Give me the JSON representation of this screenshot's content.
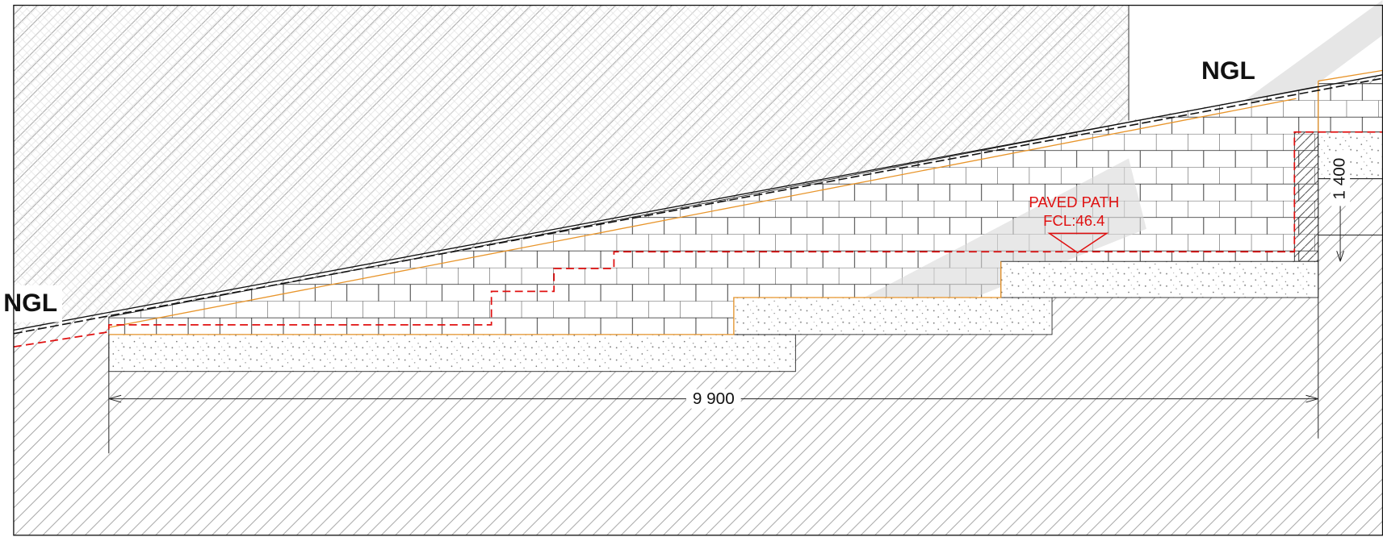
{
  "labels": {
    "ngl_left": "NGL",
    "ngl_right": "NGL",
    "paved_path": "PAVED PATH",
    "fcl": "FCL:46.4"
  },
  "dimensions": {
    "width": "9 900",
    "height": "1 400"
  }
}
